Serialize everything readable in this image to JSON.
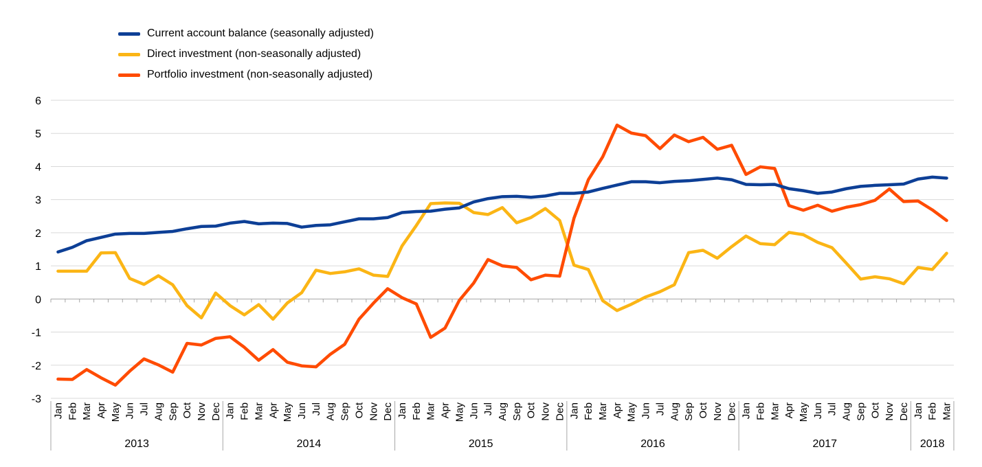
{
  "chart_data": {
    "type": "line",
    "title": "",
    "xlabel": "",
    "ylabel": "",
    "ylim": [
      -3,
      6
    ],
    "yticks": [
      "6",
      "5",
      "4",
      "3",
      "2",
      "1",
      "0",
      "-1",
      "-2",
      "-3"
    ],
    "grid": true,
    "legend_position": "top-left",
    "month_labels": [
      "Jan",
      "Feb",
      "Mar",
      "Apr",
      "May",
      "Jun",
      "Jul",
      "Aug",
      "Sep",
      "Oct",
      "Nov",
      "Dec"
    ],
    "years": [
      {
        "label": "2013",
        "months": 12
      },
      {
        "label": "2014",
        "months": 12
      },
      {
        "label": "2015",
        "months": 12
      },
      {
        "label": "2016",
        "months": 12
      },
      {
        "label": "2017",
        "months": 12
      },
      {
        "label": "2018",
        "months": 3
      }
    ],
    "series": [
      {
        "name": "Current account balance (seasonally adjusted)",
        "color": "#0d3f96",
        "values": [
          1.42,
          1.56,
          1.76,
          1.86,
          1.96,
          1.98,
          1.98,
          2.01,
          2.04,
          2.12,
          2.19,
          2.2,
          2.29,
          2.34,
          2.27,
          2.29,
          2.28,
          2.17,
          2.22,
          2.24,
          2.33,
          2.42,
          2.42,
          2.46,
          2.61,
          2.64,
          2.65,
          2.71,
          2.75,
          2.93,
          3.03,
          3.09,
          3.1,
          3.07,
          3.11,
          3.19,
          3.19,
          3.23,
          3.34,
          3.44,
          3.54,
          3.54,
          3.51,
          3.55,
          3.57,
          3.61,
          3.65,
          3.6,
          3.46,
          3.45,
          3.46,
          3.33,
          3.27,
          3.19,
          3.23,
          3.33,
          3.4,
          3.43,
          3.45,
          3.47,
          3.62,
          3.68,
          3.65
        ]
      },
      {
        "name": "Direct investment (non-seasonally adjusted)",
        "color": "#fbb515",
        "values": [
          0.84,
          0.84,
          0.84,
          1.39,
          1.4,
          0.62,
          0.44,
          0.7,
          0.43,
          -0.2,
          -0.57,
          0.18,
          -0.2,
          -0.48,
          -0.17,
          -0.61,
          -0.12,
          0.19,
          0.87,
          0.77,
          0.82,
          0.91,
          0.72,
          0.68,
          1.6,
          2.22,
          2.88,
          2.9,
          2.89,
          2.61,
          2.55,
          2.76,
          2.3,
          2.46,
          2.73,
          2.37,
          1.02,
          0.89,
          -0.05,
          -0.35,
          -0.16,
          0.06,
          0.22,
          0.43,
          1.4,
          1.47,
          1.23,
          1.58,
          1.9,
          1.67,
          1.64,
          2.01,
          1.94,
          1.71,
          1.55,
          1.08,
          0.6,
          0.67,
          0.61,
          0.46,
          0.95,
          0.89,
          1.38
        ]
      },
      {
        "name": "Portfolio investment (non-seasonally adjusted)",
        "color": "#ff4b00",
        "values": [
          -2.42,
          -2.43,
          -2.13,
          -2.38,
          -2.6,
          -2.18,
          -1.81,
          -1.99,
          -2.21,
          -1.34,
          -1.39,
          -1.19,
          -1.14,
          -1.46,
          -1.85,
          -1.53,
          -1.91,
          -2.02,
          -2.05,
          -1.67,
          -1.37,
          -0.61,
          -0.13,
          0.31,
          0.04,
          -0.15,
          -1.16,
          -0.88,
          -0.04,
          0.48,
          1.19,
          1.0,
          0.95,
          0.58,
          0.72,
          0.69,
          2.44,
          3.6,
          4.29,
          5.25,
          5.01,
          4.93,
          4.54,
          4.95,
          4.75,
          4.88,
          4.52,
          4.64,
          3.76,
          3.99,
          3.94,
          2.82,
          2.68,
          2.83,
          2.65,
          2.77,
          2.85,
          2.98,
          3.32,
          2.94,
          2.96,
          2.69,
          2.37
        ]
      }
    ]
  }
}
